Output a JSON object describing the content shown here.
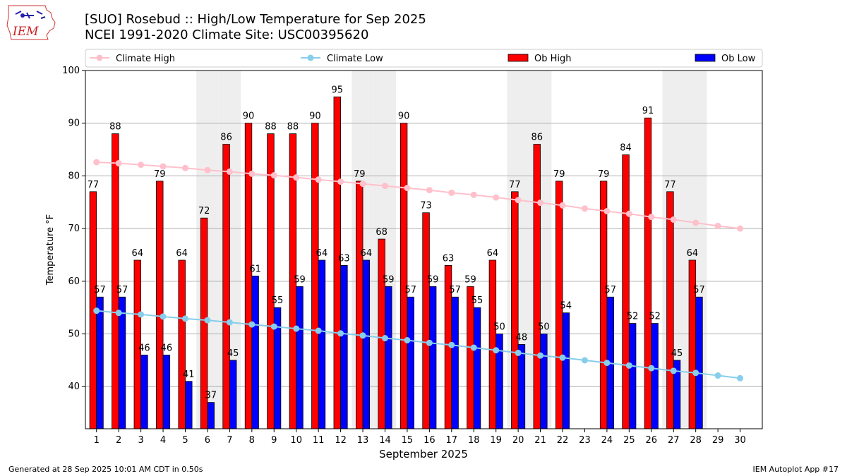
{
  "header": {
    "title_line1": "[SUO] Rosebud :: High/Low Temperature for Sep 2025",
    "title_line2": "NCEI 1991-2020 Climate Site: USC00395620",
    "logo_text": "IEM"
  },
  "footer": {
    "generated": "Generated at 28 Sep 2025 10:01 AM CDT in 0.50s",
    "app": "IEM Autoplot App #17"
  },
  "colors": {
    "ob_high": "#ff0000",
    "ob_low": "#0000ff",
    "climate_high": "#ffc0cb",
    "climate_low": "#87ceeb",
    "weekend_band": "#eeeeee",
    "grid": "#b0b0b0"
  },
  "chart_data": {
    "type": "bar",
    "xlabel": "September 2025",
    "ylabel": "Temperature °F",
    "ylim": [
      32,
      100
    ],
    "yticks": [
      40,
      50,
      60,
      70,
      80,
      90,
      100
    ],
    "grid": "horizontal",
    "legend_position": "top",
    "weekend_days": [
      6,
      7,
      13,
      14,
      20,
      21,
      27,
      28
    ],
    "categories": [
      "1",
      "2",
      "3",
      "4",
      "5",
      "6",
      "7",
      "8",
      "9",
      "10",
      "11",
      "12",
      "13",
      "14",
      "15",
      "16",
      "17",
      "18",
      "19",
      "20",
      "21",
      "22",
      "23",
      "24",
      "25",
      "26",
      "27",
      "28",
      "29",
      "30"
    ],
    "series": [
      {
        "name": "Ob High",
        "kind": "bar",
        "values": [
          77,
          88,
          64,
          79,
          64,
          72,
          86,
          90,
          88,
          88,
          90,
          95,
          79,
          68,
          90,
          73,
          63,
          59,
          64,
          77,
          86,
          79,
          null,
          79,
          84,
          91,
          77,
          64,
          null,
          null
        ]
      },
      {
        "name": "Ob Low",
        "kind": "bar",
        "values": [
          57,
          57,
          46,
          46,
          41,
          37,
          45,
          61,
          55,
          59,
          64,
          63,
          64,
          59,
          57,
          59,
          57,
          55,
          50,
          48,
          50,
          54,
          null,
          57,
          52,
          52,
          45,
          57,
          null,
          null
        ]
      },
      {
        "name": "Climate High",
        "kind": "line",
        "values": [
          82.6,
          82.4,
          82.1,
          81.8,
          81.5,
          81.1,
          80.8,
          80.4,
          80.1,
          79.7,
          79.3,
          78.9,
          78.5,
          78.1,
          77.7,
          77.3,
          76.8,
          76.4,
          75.9,
          75.4,
          74.9,
          74.4,
          73.8,
          73.3,
          72.8,
          72.2,
          71.7,
          71.1,
          70.5,
          70.0
        ]
      },
      {
        "name": "Climate Low",
        "kind": "line",
        "values": [
          54.4,
          54.0,
          53.7,
          53.3,
          52.9,
          52.6,
          52.2,
          51.8,
          51.4,
          51.0,
          50.6,
          50.1,
          49.7,
          49.2,
          48.8,
          48.3,
          47.9,
          47.4,
          46.9,
          46.4,
          45.9,
          45.5,
          45.0,
          44.5,
          44.0,
          43.5,
          43.0,
          42.6,
          42.1,
          41.6
        ]
      }
    ]
  }
}
